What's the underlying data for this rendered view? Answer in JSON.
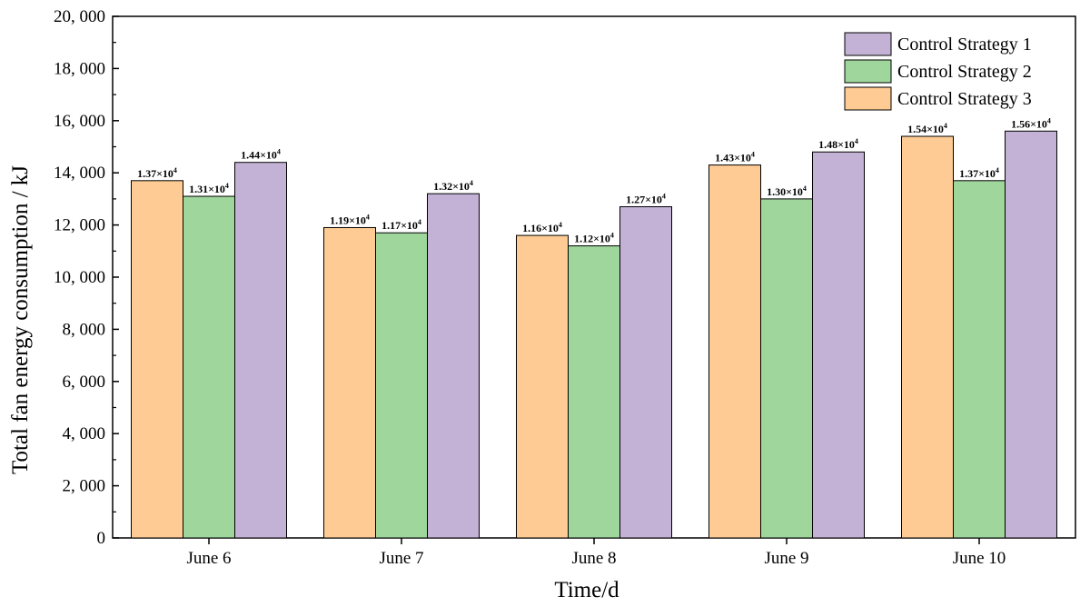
{
  "chart_data": {
    "type": "bar",
    "title": "",
    "xlabel": "Time/d",
    "ylabel": "Total fan energy consumption / kJ",
    "ylim": [
      0,
      20000
    ],
    "yticks": [
      0,
      2000,
      4000,
      6000,
      8000,
      10000,
      12000,
      14000,
      16000,
      18000,
      20000
    ],
    "ytick_labels": [
      "0",
      "2, 000",
      "4, 000",
      "6, 000",
      "8, 000",
      "10, 000",
      "12, 000",
      "14, 000",
      "16, 000",
      "18, 000",
      "20, 000"
    ],
    "categories": [
      "June 6",
      "June 7",
      "June 8",
      "June 9",
      "June 10"
    ],
    "grid": false,
    "legend_position": "top-right",
    "series": [
      {
        "name": "Control Strategy 3",
        "color": "#FDCB93",
        "values": [
          13700,
          11900,
          11600,
          14300,
          15400
        ],
        "labels": [
          "1.37×10",
          "1.19×10",
          "1.16×10",
          "1.43×10",
          "1.54×10"
        ]
      },
      {
        "name": "Control Strategy 2",
        "color": "#9ED69B",
        "values": [
          13100,
          11700,
          11200,
          13000,
          13700
        ],
        "labels": [
          "1.31×10",
          "1.17×10",
          "1.12×10",
          "1.30×10",
          "1.37×10"
        ]
      },
      {
        "name": "Control Strategy 1",
        "color": "#C4B2D6",
        "values": [
          14400,
          13200,
          12700,
          14800,
          15600
        ],
        "labels": [
          "1.44×10",
          "1.32×10",
          "1.27×10",
          "1.48×10",
          "1.56×10"
        ]
      }
    ],
    "label_exponent": "4",
    "legend_order": [
      "Control Strategy 1",
      "Control Strategy 2",
      "Control Strategy 3"
    ]
  }
}
